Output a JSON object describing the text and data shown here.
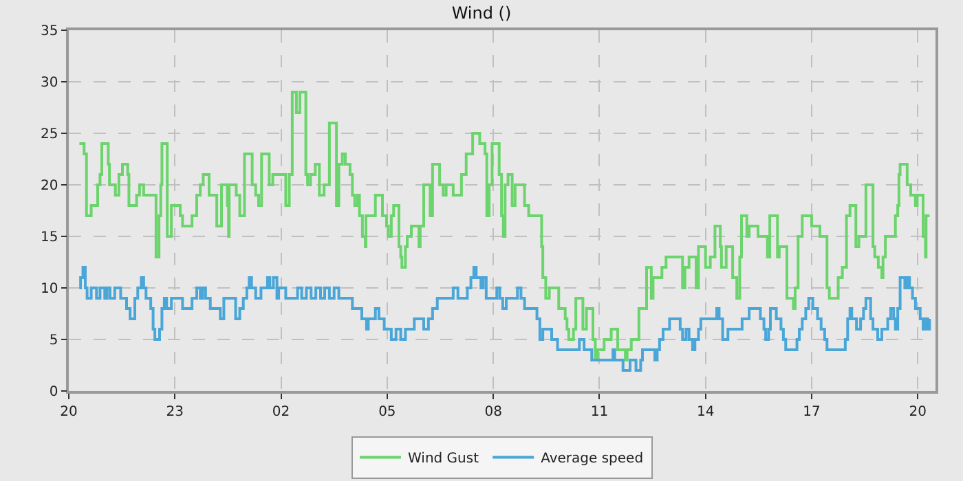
{
  "chart_data": {
    "type": "step",
    "title": "Wind ()",
    "xlim": [
      "--01-01T20:00",
      "--01-02T20:30"
    ],
    "xticks": [
      {
        "value": "--01-01T20:00",
        "label": "20"
      },
      {
        "value": "--01-01T23:00",
        "label": "23"
      },
      {
        "value": "--01-02T02:00",
        "label": "02"
      },
      {
        "value": "--01-02T05:00",
        "label": "05"
      },
      {
        "value": "--01-02T08:00",
        "label": "08"
      },
      {
        "value": "--01-02T11:00",
        "label": "11"
      },
      {
        "value": "--01-02T14:00",
        "label": "14"
      },
      {
        "value": "--01-02T17:00",
        "label": "17"
      },
      {
        "value": "--01-02T20:00",
        "label": "20"
      }
    ],
    "ylim": [
      0,
      35
    ],
    "yticks": [
      0,
      5,
      10,
      15,
      20,
      25,
      30,
      35
    ],
    "grid": true,
    "legend": "bottom",
    "line_style": "solid",
    "marker": "none",
    "series": [
      {
        "name": "Wind Gust",
        "color": "#6cd46c",
        "x": [
          "--01-01T20:18",
          "--01-01T20:26",
          "--01-01T20:30",
          "--01-01T20:38",
          "--01-01T20:49",
          "--01-01T20:53",
          "--01-01T20:56",
          "--01-01T21:07",
          "--01-01T21:09",
          "--01-01T21:19",
          "--01-01T21:25",
          "--01-01T21:31",
          "--01-01T21:40",
          "--01-01T21:42",
          "--01-01T21:55",
          "--01-01T22:00",
          "--01-01T22:07",
          "--01-01T22:24",
          "--01-01T22:28",
          "--01-01T22:33",
          "--01-01T22:36",
          "--01-01T22:38",
          "--01-01T22:47",
          "--01-01T22:54",
          "--01-01T23:09",
          "--01-01T23:13",
          "--01-01T23:29",
          "--01-01T23:37",
          "--01-01T23:43",
          "--01-01T23:48",
          "--01-01T23:58",
          "--01-02T00:11",
          "--01-02T00:19",
          "--01-02T00:29",
          "--01-02T00:31",
          "--01-02T00:32",
          "--01-02T00:44",
          "--01-02T00:50",
          "--01-02T00:58",
          "--01-02T01:11",
          "--01-02T01:17",
          "--01-02T01:22",
          "--01-02T01:27",
          "--01-02T01:40",
          "--01-02T01:46",
          "--01-02T02:08",
          "--01-02T02:14",
          "--01-02T02:19",
          "--01-02T02:26",
          "--01-02T02:32",
          "--01-02T02:42",
          "--01-02T02:45",
          "--01-02T02:50",
          "--01-02T02:58",
          "--01-02T03:05",
          "--01-02T03:13",
          "--01-02T03:22",
          "--01-02T03:34",
          "--01-02T03:38",
          "--01-02T03:44",
          "--01-02T03:49",
          "--01-02T03:57",
          "--01-02T04:01",
          "--01-02T04:05",
          "--01-02T04:10",
          "--01-02T04:13",
          "--01-02T04:18",
          "--01-02T04:23",
          "--01-02T04:24",
          "--01-02T04:40",
          "--01-02T04:52",
          "--01-02T04:59",
          "--01-02T05:02",
          "--01-02T05:07",
          "--01-02T05:11",
          "--01-02T05:20",
          "--01-02T05:23",
          "--01-02T05:25",
          "--01-02T05:31",
          "--01-02T05:34",
          "--01-02T05:41",
          "--01-02T05:54",
          "--01-02T05:56",
          "--01-02T06:02",
          "--01-02T06:13",
          "--01-02T06:17",
          "--01-02T06:29",
          "--01-02T06:35",
          "--01-02T06:40",
          "--01-02T06:52",
          "--01-02T07:06",
          "--01-02T07:14",
          "--01-02T07:25",
          "--01-02T07:37",
          "--01-02T07:46",
          "--01-02T07:49",
          "--01-02T07:53",
          "--01-02T07:58",
          "--01-02T08:10",
          "--01-02T08:14",
          "--01-02T08:17",
          "--01-02T08:20",
          "--01-02T08:25",
          "--01-02T08:32",
          "--01-02T08:37",
          "--01-02T08:53",
          "--01-02T09:00",
          "--01-02T09:22",
          "--01-02T09:24",
          "--01-02T09:29",
          "--01-02T09:35",
          "--01-02T09:51",
          "--01-02T09:57",
          "--01-02T10:02",
          "--01-02T10:05",
          "--01-02T10:08",
          "--01-02T10:16",
          "--01-02T10:20",
          "--01-02T10:32",
          "--01-02T10:38",
          "--01-02T10:49",
          "--01-02T10:53",
          "--01-02T10:57",
          "--01-02T11:08",
          "--01-02T11:20",
          "--01-02T11:31",
          "--01-02T11:44",
          "--01-02T11:47",
          "--01-02T11:54",
          "--01-02T12:07",
          "--01-02T12:20",
          "--01-02T12:28",
          "--01-02T12:31",
          "--01-02T12:46",
          "--01-02T12:53",
          "--01-02T13:21",
          "--01-02T13:25",
          "--01-02T13:32",
          "--01-02T13:44",
          "--01-02T13:48",
          "--01-02T14:00",
          "--01-02T14:08",
          "--01-02T14:16",
          "--01-02T14:25",
          "--01-02T14:27",
          "--01-02T14:35",
          "--01-02T14:46",
          "--01-02T14:53",
          "--01-02T14:58",
          "--01-02T15:01",
          "--01-02T15:10",
          "--01-02T15:14",
          "--01-02T15:23",
          "--01-02T15:29",
          "--01-02T15:45",
          "--01-02T15:49",
          "--01-02T16:02",
          "--01-02T16:05",
          "--01-02T16:18",
          "--01-02T16:29",
          "--01-02T16:32",
          "--01-02T16:37",
          "--01-02T16:41",
          "--01-02T16:44",
          "--01-02T17:00",
          "--01-02T17:14",
          "--01-02T17:26",
          "--01-02T17:30",
          "--01-02T17:34",
          "--01-02T17:45",
          "--01-02T17:52",
          "--01-02T17:59",
          "--01-02T18:05",
          "--01-02T18:15",
          "--01-02T18:20",
          "--01-02T18:32",
          "--01-02T18:44",
          "--01-02T18:47",
          "--01-02T18:53",
          "--01-02T18:59",
          "--01-02T19:01",
          "--01-02T19:05",
          "--01-02T19:22",
          "--01-02T19:26",
          "--01-02T19:28",
          "--01-02T19:30",
          "--01-02T19:42",
          "--01-02T19:48",
          "--01-02T19:56",
          "--01-02T19:59",
          "--01-02T20:09",
          "--01-02T20:13",
          "--01-02T20:14",
          "--01-02T20:20"
        ],
        "values": [
          24,
          23,
          17,
          18,
          20,
          21,
          24,
          22,
          20,
          19,
          21,
          22,
          21,
          18,
          19,
          20,
          19,
          19,
          13,
          17,
          20,
          24,
          15,
          18,
          17,
          16,
          17,
          19,
          20,
          21,
          19,
          16,
          20,
          18,
          15,
          20,
          19,
          17,
          23,
          20,
          19,
          18,
          23,
          20,
          21,
          18,
          21,
          29,
          27,
          29,
          21,
          20,
          21,
          22,
          19,
          20,
          26,
          18,
          22,
          23,
          22,
          21,
          19,
          18,
          19,
          17,
          15,
          14,
          17,
          19,
          17,
          16,
          15,
          17,
          18,
          14,
          13,
          12,
          14,
          15,
          16,
          14,
          16,
          20,
          17,
          22,
          20,
          19,
          20,
          19,
          21,
          23,
          25,
          24,
          23,
          17,
          20,
          24,
          21,
          17,
          15,
          20,
          21,
          18,
          20,
          18,
          17,
          14,
          11,
          9,
          10,
          8,
          8,
          7,
          6,
          5,
          6,
          9,
          6,
          8,
          5,
          3,
          4,
          5,
          6,
          4,
          3,
          4,
          5,
          8,
          12,
          9,
          11,
          12,
          13,
          10,
          12,
          13,
          10,
          14,
          12,
          13,
          16,
          14,
          12,
          14,
          11,
          9,
          13,
          17,
          15,
          16,
          16,
          15,
          13,
          17,
          13,
          14,
          9,
          8,
          10,
          15,
          15,
          17,
          16,
          15,
          10,
          9,
          9,
          11,
          12,
          17,
          18,
          14,
          15,
          20,
          14,
          13,
          12,
          11,
          13,
          15,
          17,
          18,
          21,
          22,
          20,
          19,
          18,
          19,
          15,
          13,
          17,
          17
        ]
      },
      {
        "name": "Average speed",
        "color": "#4ba6d8",
        "x": [
          "--01-01T20:18",
          "--01-01T20:20",
          "--01-01T20:24",
          "--01-01T20:28",
          "--01-01T20:31",
          "--01-01T20:38",
          "--01-01T20:47",
          "--01-01T20:53",
          "--01-01T21:01",
          "--01-01T21:05",
          "--01-01T21:10",
          "--01-01T21:18",
          "--01-01T21:28",
          "--01-01T21:38",
          "--01-01T21:44",
          "--01-01T21:52",
          "--01-01T21:57",
          "--01-01T22:03",
          "--01-01T22:07",
          "--01-01T22:11",
          "--01-01T22:19",
          "--01-01T22:23",
          "--01-01T22:26",
          "--01-01T22:34",
          "--01-01T22:38",
          "--01-01T22:42",
          "--01-01T22:46",
          "--01-01T22:54",
          "--01-01T23:05",
          "--01-01T23:13",
          "--01-01T23:29",
          "--01-01T23:37",
          "--01-01T23:43",
          "--01-01T23:47",
          "--01-01T23:52",
          "--01-02T00:00",
          "--01-02T00:17",
          "--01-02T00:23",
          "--01-02T00:43",
          "--01-02T00:50",
          "--01-02T00:56",
          "--01-02T01:02",
          "--01-02T01:06",
          "--01-02T01:10",
          "--01-02T01:17",
          "--01-02T01:26",
          "--01-02T01:37",
          "--01-02T01:41",
          "--01-02T01:47",
          "--01-02T01:53",
          "--01-02T01:56",
          "--01-02T02:08",
          "--01-02T02:20",
          "--01-02T02:28",
          "--01-02T02:35",
          "--01-02T02:43",
          "--01-02T02:51",
          "--01-02T02:59",
          "--01-02T03:07",
          "--01-02T03:14",
          "--01-02T03:22",
          "--01-02T03:30",
          "--01-02T03:38",
          "--01-02T03:53",
          "--01-02T04:01",
          "--01-02T04:17",
          "--01-02T04:25",
          "--01-02T04:28",
          "--01-02T04:40",
          "--01-02T04:46",
          "--01-02T04:55",
          "--01-02T05:07",
          "--01-02T05:15",
          "--01-02T05:23",
          "--01-02T05:31",
          "--01-02T05:46",
          "--01-02T06:02",
          "--01-02T06:10",
          "--01-02T06:17",
          "--01-02T06:25",
          "--01-02T06:52",
          "--01-02T07:00",
          "--01-02T07:16",
          "--01-02T07:22",
          "--01-02T07:27",
          "--01-02T07:31",
          "--01-02T07:39",
          "--01-02T07:43",
          "--01-02T07:48",
          "--01-02T08:06",
          "--01-02T08:11",
          "--01-02T08:16",
          "--01-02T08:22",
          "--01-02T08:33",
          "--01-02T08:41",
          "--01-02T08:47",
          "--01-02T08:53",
          "--01-02T09:14",
          "--01-02T09:19",
          "--01-02T09:24",
          "--01-02T09:39",
          "--01-02T09:49",
          "--01-02T10:26",
          "--01-02T10:34",
          "--01-02T10:47",
          "--01-02T11:23",
          "--01-02T11:26",
          "--01-02T11:40",
          "--01-02T11:52",
          "--01-02T12:02",
          "--01-02T12:10",
          "--01-02T12:13",
          "--01-02T12:34",
          "--01-02T12:38",
          "--01-02T12:42",
          "--01-02T12:48",
          "--01-02T12:59",
          "--01-02T13:17",
          "--01-02T13:21",
          "--01-02T13:27",
          "--01-02T13:32",
          "--01-02T13:38",
          "--01-02T13:42",
          "--01-02T13:48",
          "--01-02T13:52",
          "--01-02T14:19",
          "--01-02T14:23",
          "--01-02T14:29",
          "--01-02T14:38",
          "--01-02T15:02",
          "--01-02T15:14",
          "--01-02T15:33",
          "--01-02T15:39",
          "--01-02T15:42",
          "--01-02T15:47",
          "--01-02T15:50",
          "--01-02T16:00",
          "--01-02T16:08",
          "--01-02T16:12",
          "--01-02T16:16",
          "--01-02T16:35",
          "--01-02T16:39",
          "--01-02T16:44",
          "--01-02T16:50",
          "--01-02T16:55",
          "--01-02T17:02",
          "--01-02T17:10",
          "--01-02T17:16",
          "--01-02T17:22",
          "--01-02T17:26",
          "--01-02T17:57",
          "--01-02T18:01",
          "--01-02T18:05",
          "--01-02T18:08",
          "--01-02T18:16",
          "--01-02T18:23",
          "--01-02T18:28",
          "--01-02T18:32",
          "--01-02T18:40",
          "--01-02T18:44",
          "--01-02T18:52",
          "--01-02T18:59",
          "--01-02T19:09",
          "--01-02T19:14",
          "--01-02T19:19",
          "--01-02T19:22",
          "--01-02T19:26",
          "--01-02T19:30",
          "--01-02T19:38",
          "--01-02T19:42",
          "--01-02T19:46",
          "--01-02T19:51",
          "--01-02T19:56",
          "--01-02T20:04",
          "--01-02T20:09",
          "--01-02T20:13",
          "--01-02T20:17",
          "--01-02T20:20"
        ],
        "values": [
          10,
          11,
          12,
          10,
          9,
          10,
          9,
          10,
          9,
          10,
          9,
          10,
          9,
          8,
          7,
          9,
          10,
          11,
          10,
          9,
          8,
          6,
          5,
          6,
          8,
          9,
          8,
          9,
          9,
          8,
          9,
          10,
          9,
          10,
          9,
          8,
          7,
          9,
          7,
          8,
          9,
          10,
          11,
          10,
          9,
          10,
          11,
          10,
          11,
          9,
          10,
          9,
          9,
          10,
          9,
          10,
          9,
          10,
          9,
          10,
          9,
          10,
          9,
          9,
          8,
          7,
          6,
          7,
          8,
          7,
          6,
          5,
          6,
          5,
          6,
          7,
          6,
          7,
          8,
          9,
          10,
          9,
          10,
          11,
          12,
          11,
          10,
          11,
          9,
          10,
          9,
          8,
          9,
          9,
          10,
          9,
          8,
          7,
          5,
          6,
          5,
          4,
          5,
          4,
          3,
          4,
          3,
          2,
          3,
          2,
          3,
          4,
          3,
          4,
          5,
          6,
          7,
          6,
          5,
          6,
          5,
          4,
          5,
          6,
          7,
          8,
          7,
          5,
          6,
          7,
          8,
          7,
          6,
          5,
          6,
          8,
          7,
          6,
          5,
          4,
          5,
          6,
          7,
          8,
          9,
          8,
          7,
          6,
          5,
          4,
          5,
          7,
          8,
          7,
          6,
          7,
          8,
          9,
          7,
          6,
          5,
          6,
          7,
          8,
          7,
          6,
          8,
          11,
          10,
          11,
          10,
          9,
          8,
          7,
          6,
          7,
          6,
          7
        ]
      }
    ]
  }
}
